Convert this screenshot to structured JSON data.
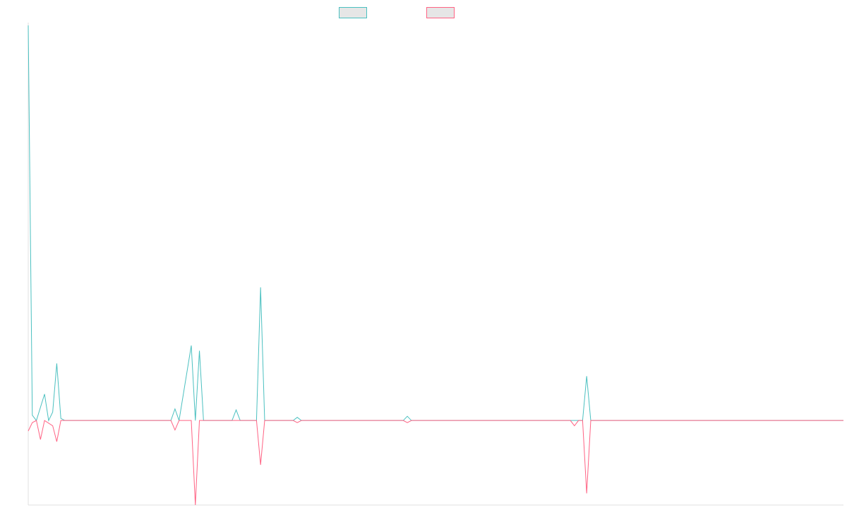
{
  "chart_data": {
    "type": "line",
    "title": "",
    "xlabel": "",
    "ylabel": "",
    "grid": false,
    "legend_position": "top-center",
    "x_count": 201,
    "ylim": [
      -400,
      1870
    ],
    "series": [
      {
        "name": "",
        "color": "#4bc0c0",
        "points": [
          [
            0,
            1870
          ],
          [
            1,
            25
          ],
          [
            2,
            0
          ],
          [
            4,
            125
          ],
          [
            5,
            0
          ],
          [
            6,
            40
          ],
          [
            7,
            270
          ],
          [
            8,
            10
          ],
          [
            9,
            0
          ],
          [
            35,
            0
          ],
          [
            36,
            55
          ],
          [
            37,
            0
          ],
          [
            40,
            355
          ],
          [
            41,
            0
          ],
          [
            42,
            330
          ],
          [
            43,
            0
          ],
          [
            50,
            0
          ],
          [
            51,
            50
          ],
          [
            52,
            0
          ],
          [
            56,
            0
          ],
          [
            57,
            630
          ],
          [
            58,
            0
          ],
          [
            65,
            0
          ],
          [
            66,
            15
          ],
          [
            67,
            0
          ],
          [
            92,
            0
          ],
          [
            93,
            20
          ],
          [
            94,
            0
          ],
          [
            136,
            0
          ],
          [
            137,
            210
          ],
          [
            138,
            0
          ],
          [
            200,
            0
          ]
        ]
      },
      {
        "name": "",
        "color": "#ff6384",
        "points": [
          [
            0,
            -50
          ],
          [
            1,
            -10
          ],
          [
            2,
            0
          ],
          [
            3,
            -90
          ],
          [
            4,
            0
          ],
          [
            6,
            -25
          ],
          [
            7,
            -100
          ],
          [
            8,
            0
          ],
          [
            35,
            0
          ],
          [
            36,
            -45
          ],
          [
            37,
            0
          ],
          [
            40,
            0
          ],
          [
            41,
            -400
          ],
          [
            42,
            0
          ],
          [
            56,
            0
          ],
          [
            57,
            -210
          ],
          [
            58,
            0
          ],
          [
            65,
            0
          ],
          [
            66,
            -10
          ],
          [
            67,
            0
          ],
          [
            92,
            0
          ],
          [
            93,
            -10
          ],
          [
            94,
            0
          ],
          [
            133,
            0
          ],
          [
            134,
            -25
          ],
          [
            135,
            0
          ],
          [
            136,
            0
          ],
          [
            137,
            -345
          ],
          [
            138,
            0
          ],
          [
            200,
            0
          ]
        ]
      }
    ]
  }
}
